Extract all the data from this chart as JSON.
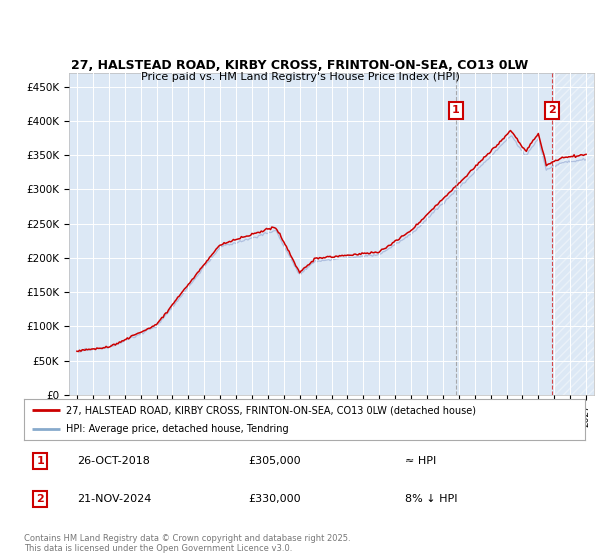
{
  "title_line1": "27, HALSTEAD ROAD, KIRBY CROSS, FRINTON-ON-SEA, CO13 0LW",
  "title_line2": "Price paid vs. HM Land Registry's House Price Index (HPI)",
  "ylabel_ticks": [
    "£0",
    "£50K",
    "£100K",
    "£150K",
    "£200K",
    "£250K",
    "£300K",
    "£350K",
    "£400K",
    "£450K"
  ],
  "ytick_vals": [
    0,
    50000,
    100000,
    150000,
    200000,
    250000,
    300000,
    350000,
    400000,
    450000
  ],
  "ylim": [
    0,
    470000
  ],
  "xlim_start": 1994.5,
  "xlim_end": 2027.5,
  "hpi_color": "#aabbdd",
  "price_color": "#cc0000",
  "bg_color": "#dce8f5",
  "grid_color": "#ffffff",
  "transaction1_date": "26-OCT-2018",
  "transaction1_price": 305000,
  "transaction1_x": 2018.82,
  "transaction2_date": "21-NOV-2024",
  "transaction2_price": 330000,
  "transaction2_x": 2024.89,
  "legend_label1": "27, HALSTEAD ROAD, KIRBY CROSS, FRINTON-ON-SEA, CO13 0LW (detached house)",
  "legend_label2": "HPI: Average price, detached house, Tendring",
  "footnote": "Contains HM Land Registry data © Crown copyright and database right 2025.\nThis data is licensed under the Open Government Licence v3.0.",
  "annotation1_text": "≈ HPI",
  "annotation2_text": "8% ↓ HPI"
}
